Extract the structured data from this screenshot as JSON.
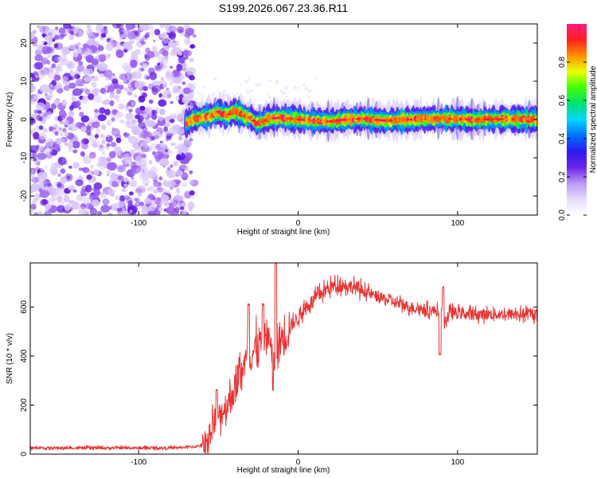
{
  "figure": {
    "title": "S199.2026.067.23.36.R11"
  },
  "colors": {
    "snr_line": "#e83333",
    "scatter_strong": "#5a10e0",
    "scatter_medium": "#9a5cf0",
    "scatter_weak": "#d7c4fb",
    "axis": "#000000"
  },
  "chart_data": [
    {
      "type": "heatmap",
      "name": "spectrogram",
      "title": "",
      "xlabel": "Height of straight line (km)",
      "ylabel": "Frequency (Hz)",
      "xlim": [
        -168,
        150
      ],
      "ylim": [
        -25,
        25
      ],
      "xticks": [
        -100,
        0,
        100
      ],
      "yticks": [
        -20,
        -10,
        0,
        10,
        20
      ],
      "noise_region": {
        "x_from": -168,
        "x_to": -65,
        "amplitude_range": [
          0.0,
          0.15
        ]
      },
      "signal_band": {
        "x_from": -70,
        "x_to": 150,
        "center_trace": [
          {
            "x": -70,
            "y": -1.0
          },
          {
            "x": -65,
            "y": 0.3
          },
          {
            "x": -60,
            "y": 0.5
          },
          {
            "x": -55,
            "y": 1.0
          },
          {
            "x": -50,
            "y": 2.0
          },
          {
            "x": -45,
            "y": 1.0
          },
          {
            "x": -40,
            "y": 2.2
          },
          {
            "x": -35,
            "y": 1.2
          },
          {
            "x": -30,
            "y": 0.5
          },
          {
            "x": -26,
            "y": -1.0
          },
          {
            "x": -22,
            "y": -0.5
          },
          {
            "x": -18,
            "y": 0.3
          },
          {
            "x": -10,
            "y": 0.5
          },
          {
            "x": 0,
            "y": 0.0
          },
          {
            "x": 10,
            "y": -0.3
          },
          {
            "x": 20,
            "y": -0.5
          },
          {
            "x": 30,
            "y": 0.0
          },
          {
            "x": 40,
            "y": 0.2
          },
          {
            "x": 55,
            "y": -0.3
          },
          {
            "x": 70,
            "y": 0.0
          },
          {
            "x": 90,
            "y": 0.2
          },
          {
            "x": 110,
            "y": 0.0
          },
          {
            "x": 130,
            "y": 0.1
          },
          {
            "x": 150,
            "y": 0.0
          }
        ],
        "peak_amplitude": 1.0
      },
      "colorbar": {
        "label": "Normalized spectral amplitude",
        "range": [
          0.0,
          1.0
        ],
        "ticks": [
          0.0,
          0.2,
          0.4,
          0.6,
          0.8
        ],
        "tick_labels": [
          "0.0",
          "0.2",
          "0.4",
          "0.6",
          "0.8"
        ],
        "colormap": [
          "#ffffff",
          "#e6dcfb",
          "#b79af3",
          "#6b22e8",
          "#2a1cf0",
          "#0070ff",
          "#00d8ff",
          "#00e070",
          "#40ff00",
          "#e8ff00",
          "#ff9000",
          "#ff2020",
          "#ff1a80"
        ]
      }
    },
    {
      "type": "line",
      "name": "snr",
      "title": "",
      "xlabel": "Height of straight line (km)",
      "ylabel": "SNR (10 * v/v)",
      "xlim": [
        -168,
        150
      ],
      "ylim": [
        0,
        780
      ],
      "xticks": [
        -100,
        0,
        100
      ],
      "yticks": [
        0,
        200,
        400,
        600
      ],
      "series": [
        {
          "name": "SNR",
          "x": [
            -168,
            -140,
            -110,
            -80,
            -65,
            -58,
            -55,
            -53,
            -50,
            -45,
            -40,
            -38,
            -35,
            -32,
            -30,
            -27,
            -24,
            -21,
            -18,
            -16,
            -14,
            -12,
            -10,
            -8,
            -5,
            0,
            5,
            10,
            15,
            20,
            25,
            30,
            35,
            40,
            50,
            60,
            70,
            80,
            90,
            91,
            95,
            100,
            110,
            120,
            130,
            140,
            150
          ],
          "y": [
            25,
            25,
            25,
            25,
            30,
            40,
            80,
            140,
            150,
            200,
            260,
            300,
            360,
            380,
            400,
            430,
            450,
            470,
            480,
            320,
            400,
            450,
            480,
            500,
            520,
            560,
            600,
            630,
            660,
            680,
            690,
            690,
            680,
            670,
            640,
            620,
            600,
            590,
            580,
            520,
            580,
            575,
            570,
            570,
            570,
            570,
            570
          ]
        }
      ],
      "spikes": [
        {
          "x": -51,
          "y": 260
        },
        {
          "x": -31,
          "y": 610
        },
        {
          "x": -22,
          "y": 610
        },
        {
          "x": -14,
          "y": 780
        },
        {
          "x": 89,
          "y": 410
        },
        {
          "x": 91,
          "y": 680
        }
      ]
    }
  ]
}
